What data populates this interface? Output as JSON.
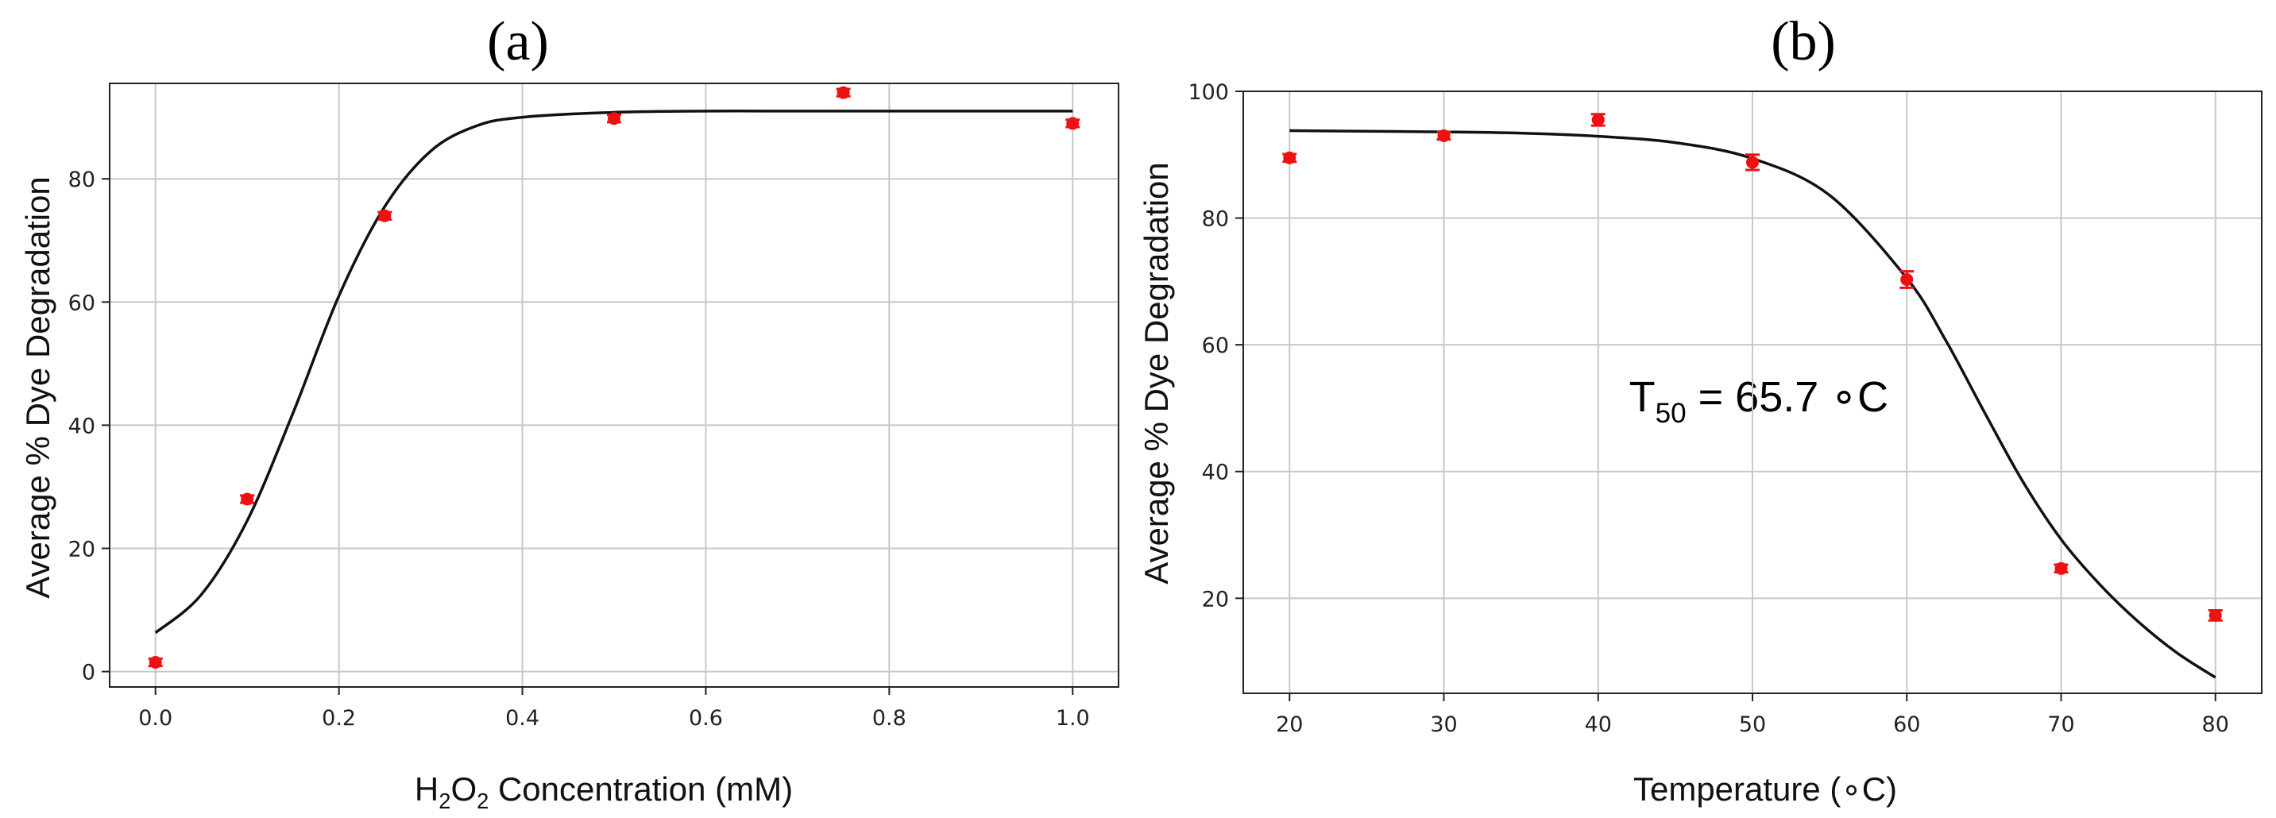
{
  "chart_data": [
    {
      "type": "scatter",
      "panel_label": "(a)",
      "title": "",
      "xlabel": "H2O2 Concentration (mM)",
      "xlabel_parts": {
        "a": "H",
        "b": "2",
        "c": "O",
        "d": "2",
        "e": " Concentration (mM)"
      },
      "ylabel": "Average % Dye Degradation",
      "xlim": [
        -0.05,
        1.05
      ],
      "ylim": [
        -2.5,
        95.5
      ],
      "xticks": [
        0.0,
        0.2,
        0.4,
        0.6,
        0.8,
        1.0
      ],
      "xtick_labels": [
        "0.0",
        "0.2",
        "0.4",
        "0.6",
        "0.8",
        "1.0"
      ],
      "yticks": [
        0,
        20,
        40,
        60,
        80
      ],
      "ytick_labels": [
        "0",
        "20",
        "40",
        "60",
        "80"
      ],
      "grid": true,
      "point_color": "#ee1111",
      "fit_color": "#111111",
      "points": {
        "x": [
          0.0,
          0.1,
          0.25,
          0.5,
          0.75,
          1.0
        ],
        "y": [
          1.5,
          28.0,
          74.0,
          89.8,
          94.0,
          89.0
        ],
        "err": [
          0.6,
          0.6,
          0.6,
          0.6,
          0.6,
          0.6
        ]
      },
      "fit_curve": {
        "x": [
          0.0,
          0.05,
          0.1,
          0.15,
          0.2,
          0.25,
          0.3,
          0.35,
          0.4,
          0.5,
          0.6,
          0.7,
          0.8,
          0.9,
          1.0
        ],
        "y": [
          6.3,
          12.5,
          24.5,
          42.0,
          61.0,
          75.5,
          84.5,
          88.6,
          90.0,
          90.8,
          91.0,
          91.0,
          91.0,
          91.0,
          91.0
        ]
      }
    },
    {
      "type": "scatter",
      "panel_label": "(b)",
      "title": "",
      "xlabel": "Temperature (∘C)",
      "ylabel": "Average % Dye Degradation",
      "xlim": [
        17,
        83
      ],
      "ylim": [
        5,
        100
      ],
      "xticks": [
        20,
        30,
        40,
        50,
        60,
        70,
        80
      ],
      "xtick_labels": [
        "20",
        "30",
        "40",
        "50",
        "60",
        "70",
        "80"
      ],
      "yticks": [
        20,
        40,
        60,
        80,
        100
      ],
      "ytick_labels": [
        "20",
        "40",
        "60",
        "80",
        "100"
      ],
      "grid": true,
      "annotation": {
        "main": "T",
        "sub": "50",
        "rest": " = 65.7 ∘C",
        "x": 42,
        "y": 52
      },
      "point_color": "#ee1111",
      "fit_color": "#111111",
      "points": {
        "x": [
          20,
          30,
          40,
          50,
          60,
          70,
          80
        ],
        "y": [
          89.5,
          93.0,
          95.5,
          88.8,
          70.3,
          24.7,
          17.3
        ],
        "err": [
          0.6,
          0.6,
          0.9,
          1.2,
          1.3,
          0.6,
          0.8
        ]
      },
      "fit_curve": {
        "x": [
          20,
          25,
          30,
          35,
          40,
          45,
          50,
          55,
          60,
          62.5,
          65,
          67.5,
          70,
          72.5,
          75,
          77.5,
          80
        ],
        "y": [
          93.8,
          93.7,
          93.6,
          93.4,
          92.9,
          91.9,
          89.4,
          83.6,
          70.5,
          60.8,
          49.5,
          38.5,
          29.3,
          22.2,
          16.3,
          11.4,
          7.5
        ]
      }
    }
  ]
}
